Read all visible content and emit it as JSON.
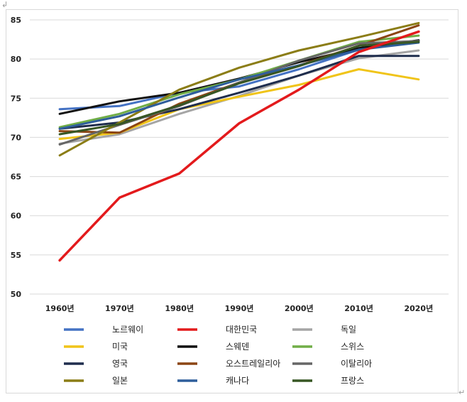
{
  "chart_data": {
    "type": "line",
    "title": "",
    "xlabel": "",
    "ylabel": "",
    "x": [
      "1960년",
      "1970년",
      "1980년",
      "1990년",
      "2000년",
      "2010년",
      "2020년"
    ],
    "ylim": [
      50,
      85
    ],
    "yticks": [
      50,
      55,
      60,
      65,
      70,
      75,
      80,
      85
    ],
    "grid": true,
    "legend_position": "bottom",
    "series": [
      {
        "name": "노르웨이",
        "color": "#4472c4",
        "values": [
          73.6,
          74.0,
          75.7,
          76.5,
          78.7,
          81.2,
          82.4
        ]
      },
      {
        "name": "대한민국",
        "color": "#e31a1c",
        "values": [
          54.3,
          62.3,
          65.4,
          71.8,
          76.1,
          80.9,
          83.5
        ]
      },
      {
        "name": "독일",
        "color": "#a5a5a5",
        "values": [
          69.2,
          70.4,
          73.0,
          75.3,
          77.9,
          80.1,
          81.1
        ]
      },
      {
        "name": "미국",
        "color": "#f0c419",
        "values": [
          69.8,
          70.6,
          73.6,
          75.2,
          76.7,
          78.7,
          77.4
        ]
      },
      {
        "name": "스웨덴",
        "color": "#111111",
        "values": [
          73.0,
          74.6,
          75.7,
          77.5,
          79.6,
          81.4,
          82.4
        ]
      },
      {
        "name": "스위스",
        "color": "#70ad47",
        "values": [
          71.3,
          73.0,
          75.5,
          77.4,
          79.8,
          82.2,
          83.0
        ]
      },
      {
        "name": "영국",
        "color": "#1f2d4d",
        "values": [
          71.1,
          71.9,
          73.6,
          75.7,
          77.9,
          80.4,
          80.4
        ]
      },
      {
        "name": "오스트레일리아",
        "color": "#8b4513",
        "values": [
          70.8,
          70.6,
          74.3,
          77.0,
          79.2,
          81.7,
          84.3
        ]
      },
      {
        "name": "이탈리아",
        "color": "#666666",
        "values": [
          69.1,
          71.6,
          74.0,
          77.0,
          79.8,
          82.0,
          82.3
        ]
      },
      {
        "name": "일본",
        "color": "#8b7d16",
        "values": [
          67.7,
          71.9,
          76.1,
          78.9,
          81.1,
          82.8,
          84.6
        ]
      },
      {
        "name": "캐나다",
        "color": "#2e5e9b",
        "values": [
          71.1,
          72.7,
          75.1,
          77.4,
          79.2,
          81.2,
          82.1
        ]
      },
      {
        "name": "프랑스",
        "color": "#375623",
        "values": [
          70.4,
          71.7,
          74.1,
          76.9,
          79.1,
          81.7,
          82.2
        ]
      }
    ]
  },
  "page": {
    "corner_mark": "↲",
    "end_mark": "↵"
  }
}
